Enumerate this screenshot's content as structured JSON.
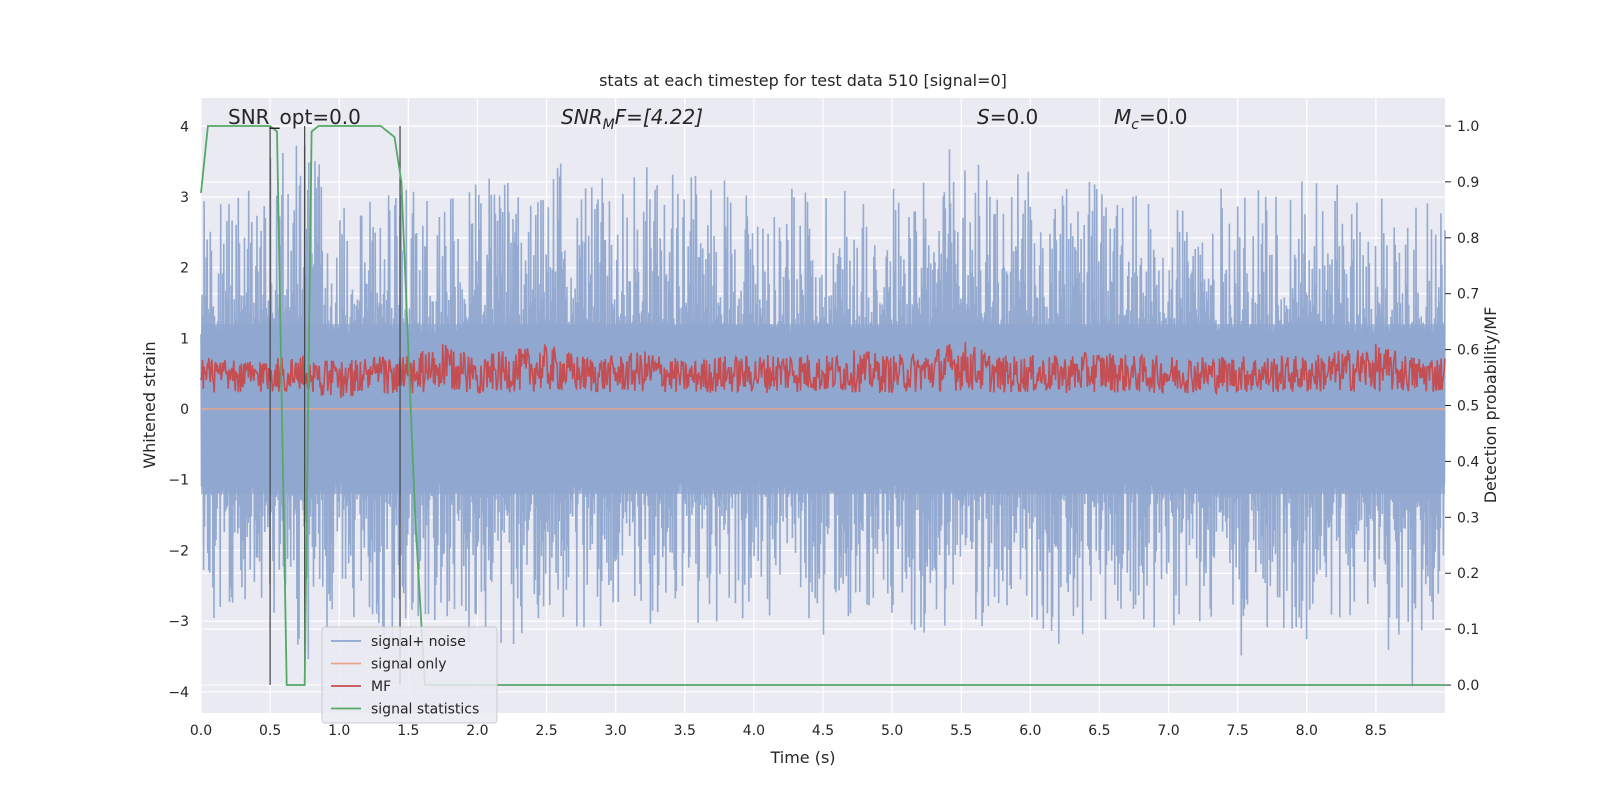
{
  "chart_data": {
    "type": "line",
    "title": "stats at each timestep for test data 510 [signal=0]",
    "xlabel": "Time (s)",
    "ylabel": "Whitened strain",
    "y2label": "Detection probability/MF",
    "xlim": [
      0.0,
      9.0
    ],
    "ylim": [
      -4.3,
      4.4
    ],
    "y2lim": [
      -0.05,
      1.05
    ],
    "xticks": [
      "0.0",
      "0.5",
      "1.0",
      "1.5",
      "2.0",
      "2.5",
      "3.0",
      "3.5",
      "4.0",
      "4.5",
      "5.0",
      "5.5",
      "6.0",
      "6.5",
      "7.0",
      "7.5",
      "8.0",
      "8.5"
    ],
    "yticks": [
      "4",
      "3",
      "2",
      "1",
      "0",
      "−1",
      "−2",
      "−3",
      "−4"
    ],
    "y2ticks": [
      "1.0",
      "0.9",
      "0.8",
      "0.7",
      "0.6",
      "0.5",
      "0.4",
      "0.3",
      "0.2",
      "0.1",
      "0.0"
    ],
    "grid": true,
    "legend_position": "lower-left",
    "annotations": {
      "snr_opt": "SNR_opt=0.0",
      "snr_mf_main": "SNR",
      "snr_mf_sub": "M",
      "snr_mf_tail": "F=[4.22]",
      "s_main": "S",
      "s_tail": "=0.0",
      "mc_main": "M",
      "mc_sub": "c",
      "mc_tail": "=0.0"
    },
    "series": [
      {
        "name": "signal+ noise",
        "color": "#8fa6cf",
        "axis": "left",
        "note": "noise amplitude envelope, whitened strain",
        "x": [
          0.0,
          0.25,
          0.5,
          0.75,
          1.0,
          1.25,
          1.5,
          1.75,
          2.0,
          2.25,
          2.5,
          2.75,
          3.0,
          3.25,
          3.5,
          3.75,
          4.0,
          4.25,
          4.5,
          4.75,
          5.0,
          5.25,
          5.5,
          5.75,
          6.0,
          6.25,
          6.5,
          6.75,
          7.0,
          7.25,
          7.5,
          7.75,
          8.0,
          8.25,
          8.5,
          8.75,
          9.0
        ],
        "upper": [
          3.0,
          3.2,
          3.6,
          3.8,
          3.0,
          3.1,
          3.2,
          3.0,
          3.3,
          3.2,
          3.6,
          3.3,
          3.4,
          3.5,
          3.3,
          3.4,
          3.3,
          3.1,
          3.4,
          3.2,
          3.3,
          3.2,
          4.0,
          3.3,
          3.4,
          3.2,
          3.3,
          3.0,
          3.3,
          3.0,
          3.3,
          3.0,
          3.8,
          3.1,
          3.0,
          3.2,
          3.0
        ],
        "lower": [
          -3.0,
          -3.1,
          -3.1,
          -3.7,
          -2.8,
          -3.6,
          -3.0,
          -3.0,
          -3.4,
          -3.4,
          -3.0,
          -3.1,
          -3.1,
          -3.3,
          -3.0,
          -3.1,
          -2.9,
          -3.1,
          -3.2,
          -3.2,
          -3.0,
          -3.3,
          -3.0,
          -3.2,
          -3.0,
          -3.4,
          -3.0,
          -3.0,
          -3.2,
          -3.0,
          -3.6,
          -3.0,
          -3.3,
          -3.0,
          -3.2,
          -4.0,
          -3.0
        ]
      },
      {
        "name": "signal only",
        "color": "#e8a58d",
        "axis": "left",
        "x": [
          0.0,
          9.0
        ],
        "y": [
          0.0,
          0.0
        ]
      },
      {
        "name": "MF",
        "color": "#c44e52",
        "axis": "right",
        "note": "matched-filter output band",
        "x": [
          0.0,
          0.25,
          0.5,
          0.75,
          1.0,
          1.25,
          1.5,
          1.75,
          2.0,
          2.25,
          2.5,
          2.75,
          3.0,
          3.25,
          3.5,
          3.75,
          4.0,
          4.25,
          4.5,
          4.75,
          5.0,
          5.25,
          5.5,
          5.75,
          6.0,
          6.25,
          6.5,
          6.75,
          7.0,
          7.25,
          7.5,
          7.75,
          8.0,
          8.25,
          8.5,
          8.75,
          9.0
        ],
        "upper": [
          0.59,
          0.58,
          0.59,
          0.59,
          0.58,
          0.59,
          0.59,
          0.61,
          0.59,
          0.6,
          0.61,
          0.59,
          0.59,
          0.6,
          0.58,
          0.59,
          0.59,
          0.6,
          0.59,
          0.6,
          0.59,
          0.6,
          0.62,
          0.59,
          0.59,
          0.59,
          0.6,
          0.59,
          0.59,
          0.59,
          0.59,
          0.59,
          0.59,
          0.6,
          0.61,
          0.59,
          0.59
        ],
        "lower": [
          0.51,
          0.51,
          0.51,
          0.51,
          0.5,
          0.51,
          0.5,
          0.51,
          0.51,
          0.51,
          0.51,
          0.51,
          0.51,
          0.51,
          0.51,
          0.51,
          0.51,
          0.51,
          0.51,
          0.51,
          0.51,
          0.51,
          0.51,
          0.51,
          0.51,
          0.51,
          0.51,
          0.51,
          0.51,
          0.51,
          0.51,
          0.51,
          0.51,
          0.51,
          0.51,
          0.51,
          0.51
        ]
      },
      {
        "name": "signal statistics",
        "color": "#55a868",
        "axis": "right",
        "x": [
          0.0,
          0.05,
          0.1,
          0.3,
          0.5,
          0.55,
          0.62,
          0.72,
          0.75,
          0.8,
          0.85,
          1.0,
          1.3,
          1.4,
          1.45,
          1.55,
          1.62,
          2.0,
          9.0
        ],
        "y": [
          0.88,
          1.0,
          1.0,
          1.0,
          1.0,
          0.99,
          0.0,
          0.0,
          0.0,
          0.99,
          1.0,
          1.0,
          1.0,
          0.98,
          0.9,
          0.3,
          0.0,
          0.0,
          0.0
        ]
      }
    ],
    "vertical_lines": [
      0.5,
      0.75,
      1.44
    ]
  }
}
